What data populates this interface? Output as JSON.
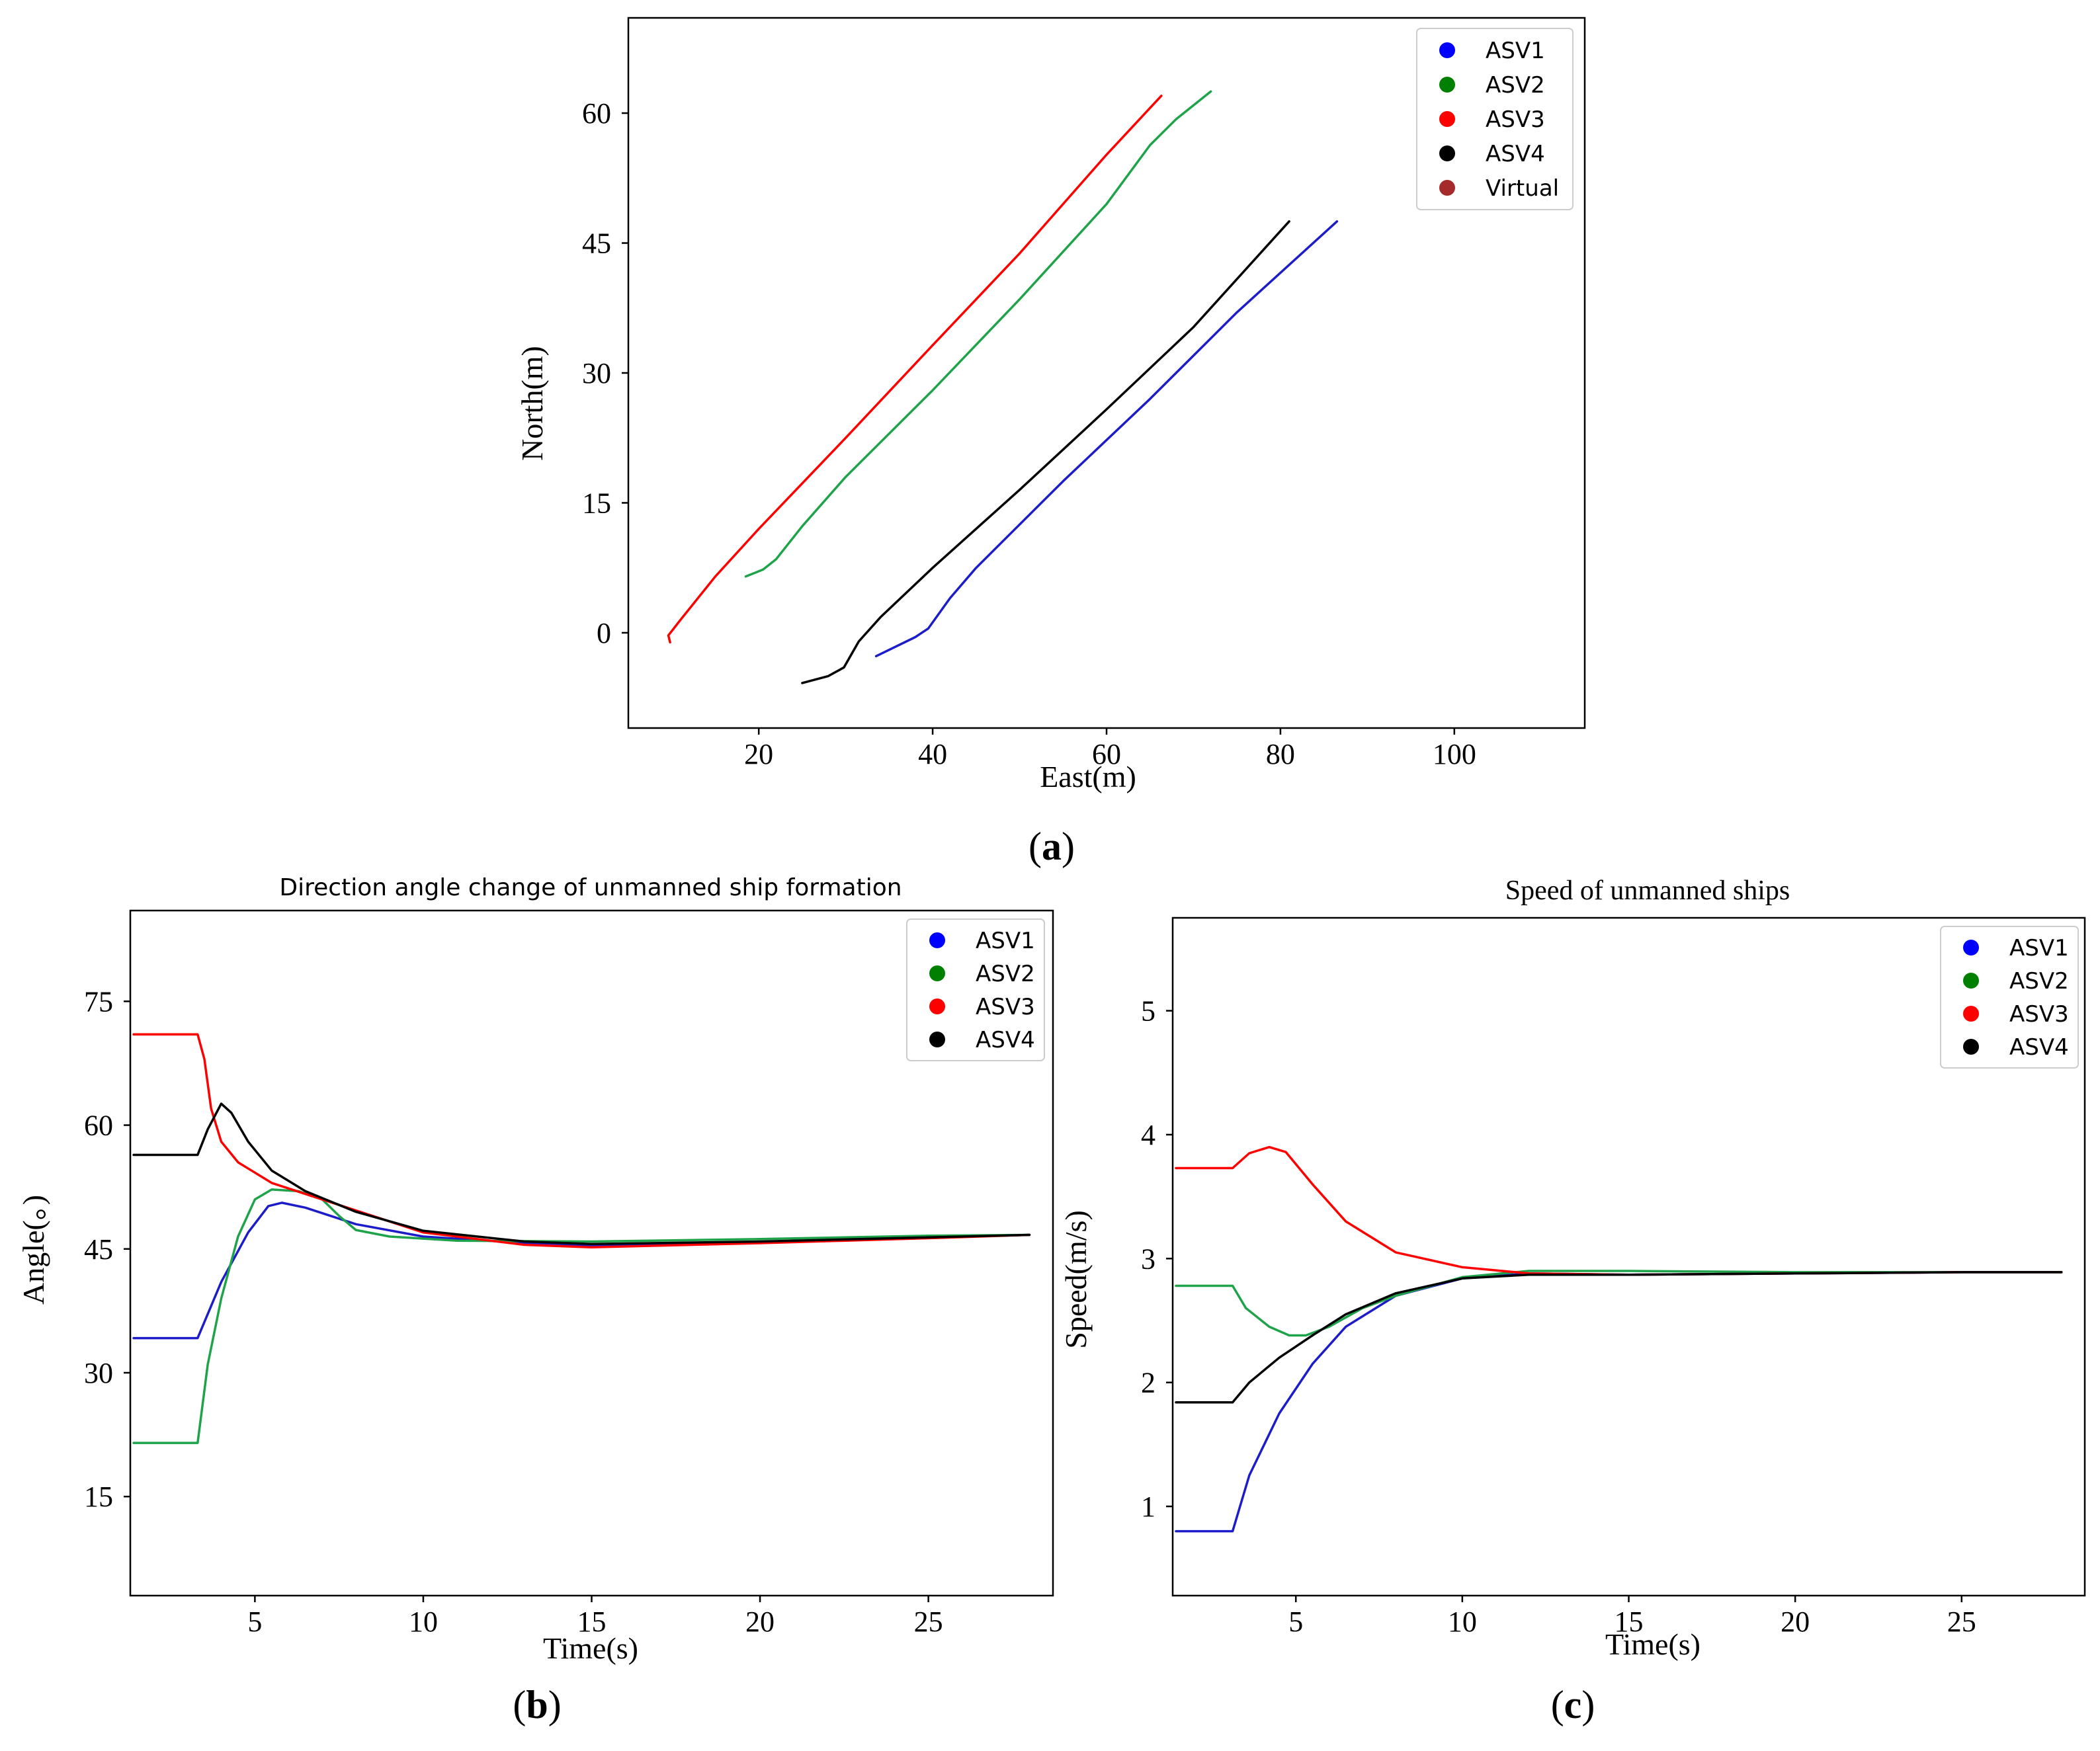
{
  "chart_data": [
    {
      "id": "a",
      "type": "line",
      "panel_label": "a",
      "title": "",
      "xlabel": "East(m)",
      "ylabel": "North(m)",
      "xlim": [
        5,
        115
      ],
      "ylim": [
        -11,
        71
      ],
      "xticks": [
        20,
        40,
        60,
        80,
        100
      ],
      "yticks": [
        0,
        15,
        30,
        45,
        60
      ],
      "legend_position": "top-right",
      "legend": [
        {
          "name": "ASV1",
          "color": "#0000ff"
        },
        {
          "name": "ASV2",
          "color": "#008000"
        },
        {
          "name": "ASV3",
          "color": "#ff0000"
        },
        {
          "name": "ASV4",
          "color": "#000000"
        },
        {
          "name": "Virtual",
          "color": "#a52a2a"
        }
      ],
      "series": [
        {
          "name": "ASV1",
          "color": "#1c1cc8",
          "points": [
            [
              33.5,
              -2.7
            ],
            [
              38,
              -0.5
            ],
            [
              39.5,
              0.5
            ],
            [
              42,
              4
            ],
            [
              45,
              7.5
            ],
            [
              55,
              17.5
            ],
            [
              65,
              27
            ],
            [
              75,
              37
            ],
            [
              86.5,
              47.5
            ]
          ]
        },
        {
          "name": "ASV2",
          "color": "#1fa34a",
          "points": [
            [
              18.5,
              6.5
            ],
            [
              20.5,
              7.3
            ],
            [
              22,
              8.5
            ],
            [
              25,
              12.3
            ],
            [
              30,
              18
            ],
            [
              40,
              28
            ],
            [
              50,
              38.5
            ],
            [
              60,
              49.5
            ],
            [
              65,
              56.3
            ],
            [
              68,
              59.3
            ],
            [
              72,
              62.5
            ]
          ]
        },
        {
          "name": "ASV3",
          "color": "#ff0000",
          "points": [
            [
              9.8,
              -1.1
            ],
            [
              9.6,
              -0.3
            ],
            [
              11,
              1.5
            ],
            [
              15,
              6.5
            ],
            [
              20,
              12
            ],
            [
              30,
              22.5
            ],
            [
              40,
              33.2
            ],
            [
              50,
              43.8
            ],
            [
              60,
              55.2
            ],
            [
              66.3,
              62
            ]
          ]
        },
        {
          "name": "ASV4",
          "color": "#000000",
          "points": [
            [
              25,
              -5.8
            ],
            [
              28,
              -5
            ],
            [
              29.8,
              -4
            ],
            [
              31.5,
              -1
            ],
            [
              34,
              1.8
            ],
            [
              40,
              7.5
            ],
            [
              50,
              16.5
            ],
            [
              60,
              25.8
            ],
            [
              70,
              35.3
            ],
            [
              81,
              47.5
            ]
          ]
        }
      ]
    },
    {
      "id": "b",
      "type": "line",
      "panel_label": "b",
      "title": "Direction angle change of unmanned ship formation",
      "xlabel": "Time(s)",
      "ylabel": "Angle(。)",
      "xlim": [
        1.3,
        28.7
      ],
      "ylim": [
        3,
        86
      ],
      "xticks": [
        5,
        10,
        15,
        20,
        25
      ],
      "yticks": [
        15,
        30,
        45,
        60,
        75
      ],
      "legend_position": "top-right",
      "legend": [
        {
          "name": "ASV1",
          "color": "#0000ff"
        },
        {
          "name": "ASV2",
          "color": "#008000"
        },
        {
          "name": "ASV3",
          "color": "#ff0000"
        },
        {
          "name": "ASV4",
          "color": "#000000"
        }
      ],
      "series": [
        {
          "name": "ASV1",
          "color": "#1c1cc8",
          "points": [
            [
              1.4,
              34.2
            ],
            [
              3.3,
              34.2
            ],
            [
              4,
              41
            ],
            [
              4.8,
              47
            ],
            [
              5.4,
              50.2
            ],
            [
              5.8,
              50.6
            ],
            [
              6.5,
              50
            ],
            [
              8,
              48
            ],
            [
              10,
              46.5
            ],
            [
              13,
              45.7
            ],
            [
              15,
              45.4
            ],
            [
              20,
              45.8
            ],
            [
              25,
              46.4
            ],
            [
              28,
              46.7
            ]
          ]
        },
        {
          "name": "ASV2",
          "color": "#1fa34a",
          "points": [
            [
              1.4,
              21.5
            ],
            [
              3.3,
              21.5
            ],
            [
              3.6,
              31
            ],
            [
              4,
              39
            ],
            [
              4.5,
              46.5
            ],
            [
              5,
              51
            ],
            [
              5.5,
              52.2
            ],
            [
              6.3,
              52
            ],
            [
              7,
              51
            ],
            [
              7.5,
              49
            ],
            [
              8,
              47.3
            ],
            [
              9,
              46.5
            ],
            [
              11,
              46
            ],
            [
              15,
              45.9
            ],
            [
              20,
              46.2
            ],
            [
              25,
              46.6
            ],
            [
              28,
              46.7
            ]
          ]
        },
        {
          "name": "ASV3",
          "color": "#ff0000",
          "points": [
            [
              1.4,
              71
            ],
            [
              3.3,
              71
            ],
            [
              3.5,
              68
            ],
            [
              3.7,
              62
            ],
            [
              4,
              58
            ],
            [
              4.5,
              55.5
            ],
            [
              5.5,
              53
            ],
            [
              7,
              51
            ],
            [
              10,
              47
            ],
            [
              13,
              45.5
            ],
            [
              15,
              45.2
            ],
            [
              20,
              45.7
            ],
            [
              25,
              46.3
            ],
            [
              28,
              46.7
            ]
          ]
        },
        {
          "name": "ASV4",
          "color": "#000000",
          "points": [
            [
              1.4,
              56.4
            ],
            [
              3.3,
              56.4
            ],
            [
              3.6,
              59.5
            ],
            [
              4,
              62.6
            ],
            [
              4.3,
              61.5
            ],
            [
              4.8,
              58
            ],
            [
              5.5,
              54.5
            ],
            [
              6.5,
              52
            ],
            [
              8,
              49.5
            ],
            [
              10,
              47.2
            ],
            [
              13,
              45.9
            ],
            [
              15,
              45.6
            ],
            [
              20,
              45.9
            ],
            [
              25,
              46.4
            ],
            [
              28,
              46.7
            ]
          ]
        }
      ]
    },
    {
      "id": "c",
      "type": "line",
      "panel_label": "c",
      "title": "Speed of unmanned ships",
      "xlabel": "Time(s)",
      "ylabel": "Speed(m/s)",
      "xlim": [
        1.3,
        28.7
      ],
      "ylim": [
        0.28,
        5.75
      ],
      "xticks": [
        5,
        10,
        15,
        20,
        25
      ],
      "yticks": [
        1,
        2,
        3,
        4,
        5
      ],
      "legend_position": "top-right",
      "legend": [
        {
          "name": "ASV1",
          "color": "#0000ff"
        },
        {
          "name": "ASV2",
          "color": "#008000"
        },
        {
          "name": "ASV3",
          "color": "#ff0000"
        },
        {
          "name": "ASV4",
          "color": "#000000"
        }
      ],
      "series": [
        {
          "name": "ASV1",
          "color": "#1c1cc8",
          "points": [
            [
              1.4,
              0.8
            ],
            [
              3.1,
              0.8
            ],
            [
              3.6,
              1.25
            ],
            [
              4.5,
              1.75
            ],
            [
              5.5,
              2.15
            ],
            [
              6.5,
              2.45
            ],
            [
              8,
              2.7
            ],
            [
              10,
              2.84
            ],
            [
              12,
              2.88
            ],
            [
              15,
              2.87
            ],
            [
              20,
              2.88
            ],
            [
              25,
              2.89
            ],
            [
              28,
              2.89
            ]
          ]
        },
        {
          "name": "ASV2",
          "color": "#1fa34a",
          "points": [
            [
              1.4,
              2.78
            ],
            [
              3.1,
              2.78
            ],
            [
              3.5,
              2.6
            ],
            [
              4.2,
              2.45
            ],
            [
              4.8,
              2.38
            ],
            [
              5.3,
              2.38
            ],
            [
              6,
              2.45
            ],
            [
              7,
              2.6
            ],
            [
              8,
              2.7
            ],
            [
              10,
              2.85
            ],
            [
              12,
              2.9
            ],
            [
              15,
              2.9
            ],
            [
              20,
              2.89
            ],
            [
              25,
              2.89
            ],
            [
              28,
              2.89
            ]
          ]
        },
        {
          "name": "ASV3",
          "color": "#ff0000",
          "points": [
            [
              1.4,
              3.73
            ],
            [
              3.1,
              3.73
            ],
            [
              3.6,
              3.85
            ],
            [
              4.2,
              3.9
            ],
            [
              4.7,
              3.86
            ],
            [
              5.5,
              3.6
            ],
            [
              6.5,
              3.3
            ],
            [
              8,
              3.05
            ],
            [
              10,
              2.93
            ],
            [
              12,
              2.88
            ],
            [
              15,
              2.87
            ],
            [
              20,
              2.88
            ],
            [
              25,
              2.89
            ],
            [
              28,
              2.89
            ]
          ]
        },
        {
          "name": "ASV4",
          "color": "#000000",
          "points": [
            [
              1.4,
              1.84
            ],
            [
              3.1,
              1.84
            ],
            [
              3.6,
              2
            ],
            [
              4.5,
              2.2
            ],
            [
              5.5,
              2.38
            ],
            [
              6.5,
              2.55
            ],
            [
              8,
              2.72
            ],
            [
              10,
              2.84
            ],
            [
              12,
              2.87
            ],
            [
              15,
              2.87
            ],
            [
              20,
              2.88
            ],
            [
              25,
              2.89
            ],
            [
              28,
              2.89
            ]
          ]
        }
      ]
    }
  ]
}
